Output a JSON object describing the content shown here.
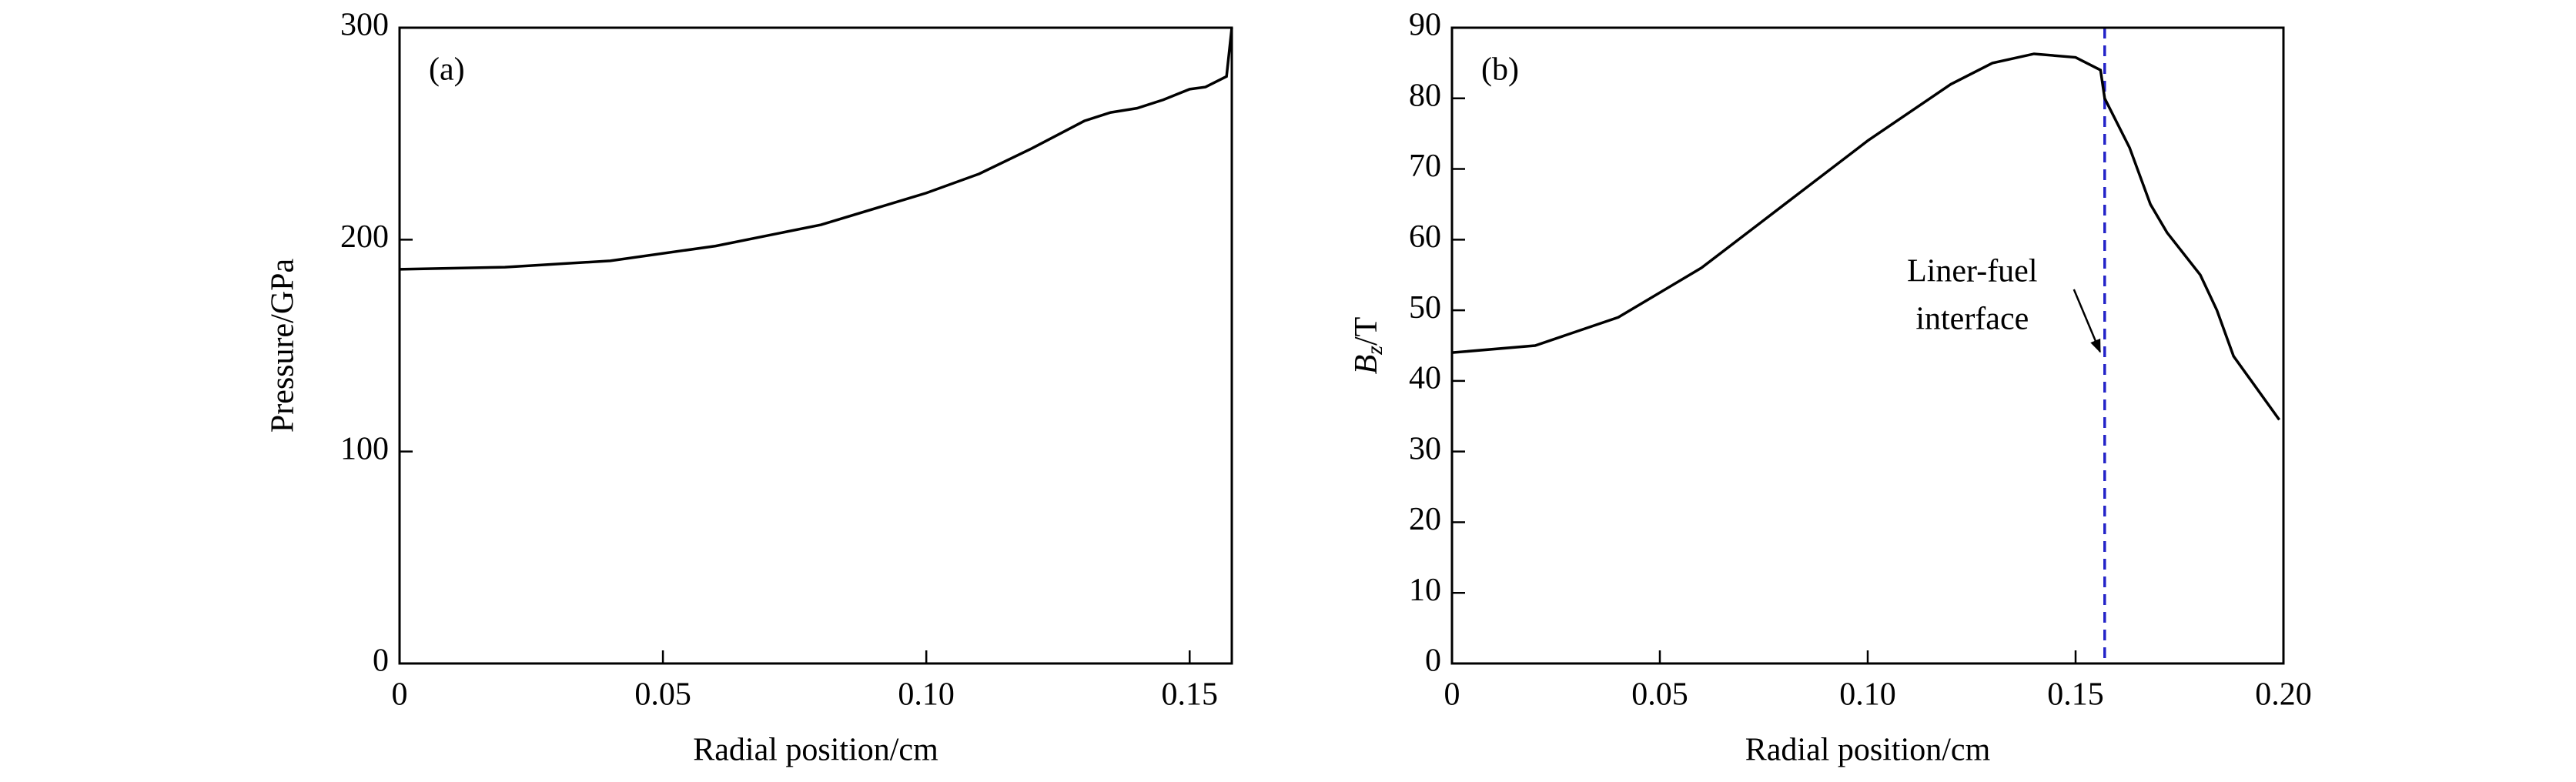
{
  "chart_data": [
    {
      "type": "line",
      "panel_label": "(a)",
      "x_label": "Radial position/cm",
      "y_label": "Pressure/GPa",
      "xlim": [
        0,
        0.158
      ],
      "xticks": [
        0,
        0.05,
        {
          "value": 0.1,
          "label": "0.10"
        },
        0.15
      ],
      "ylim": [
        0,
        300
      ],
      "yticks": [
        0,
        100,
        200,
        300
      ],
      "x": [
        0,
        0.02,
        0.04,
        0.06,
        0.08,
        0.1,
        0.11,
        0.12,
        0.13,
        0.135,
        0.14,
        0.145,
        0.15,
        0.153,
        0.157,
        0.158
      ],
      "series": [
        {
          "color": "#000000",
          "values": [
            186,
            187,
            190,
            197,
            207,
            222,
            231,
            243,
            256,
            260,
            262,
            266,
            271,
            272,
            277,
            300
          ]
        }
      ]
    },
    {
      "type": "line",
      "panel_label": "(b)",
      "x_label": "Radial position/cm",
      "y_label": {
        "symbol": "B",
        "subscript": "z",
        "unit": "/T"
      },
      "xlim": [
        0,
        0.2
      ],
      "xticks": [
        0,
        0.05,
        {
          "value": 0.1,
          "label": "0.10"
        },
        0.15,
        {
          "value": 0.2,
          "label": "0.20"
        }
      ],
      "ylim": [
        0,
        90
      ],
      "yticks": [
        0,
        10,
        20,
        30,
        40,
        50,
        60,
        70,
        80,
        90
      ],
      "x": [
        0,
        0.02,
        0.04,
        0.06,
        0.08,
        0.1,
        0.12,
        0.13,
        0.14,
        0.15,
        0.156,
        0.157,
        0.163,
        0.168,
        0.172,
        0.18,
        0.184,
        0.188,
        0.199
      ],
      "series": [
        {
          "color": "#000000",
          "values": [
            44,
            45,
            49,
            56,
            65,
            74,
            82,
            85,
            86.3,
            85.8,
            84,
            80,
            73,
            65,
            61,
            55,
            50,
            43.5,
            34.5
          ]
        }
      ],
      "vline": {
        "x": 0.157,
        "color": "#2323c8",
        "dashed": true
      },
      "annotation": [
        "Liner-fuel",
        "interface"
      ]
    }
  ]
}
